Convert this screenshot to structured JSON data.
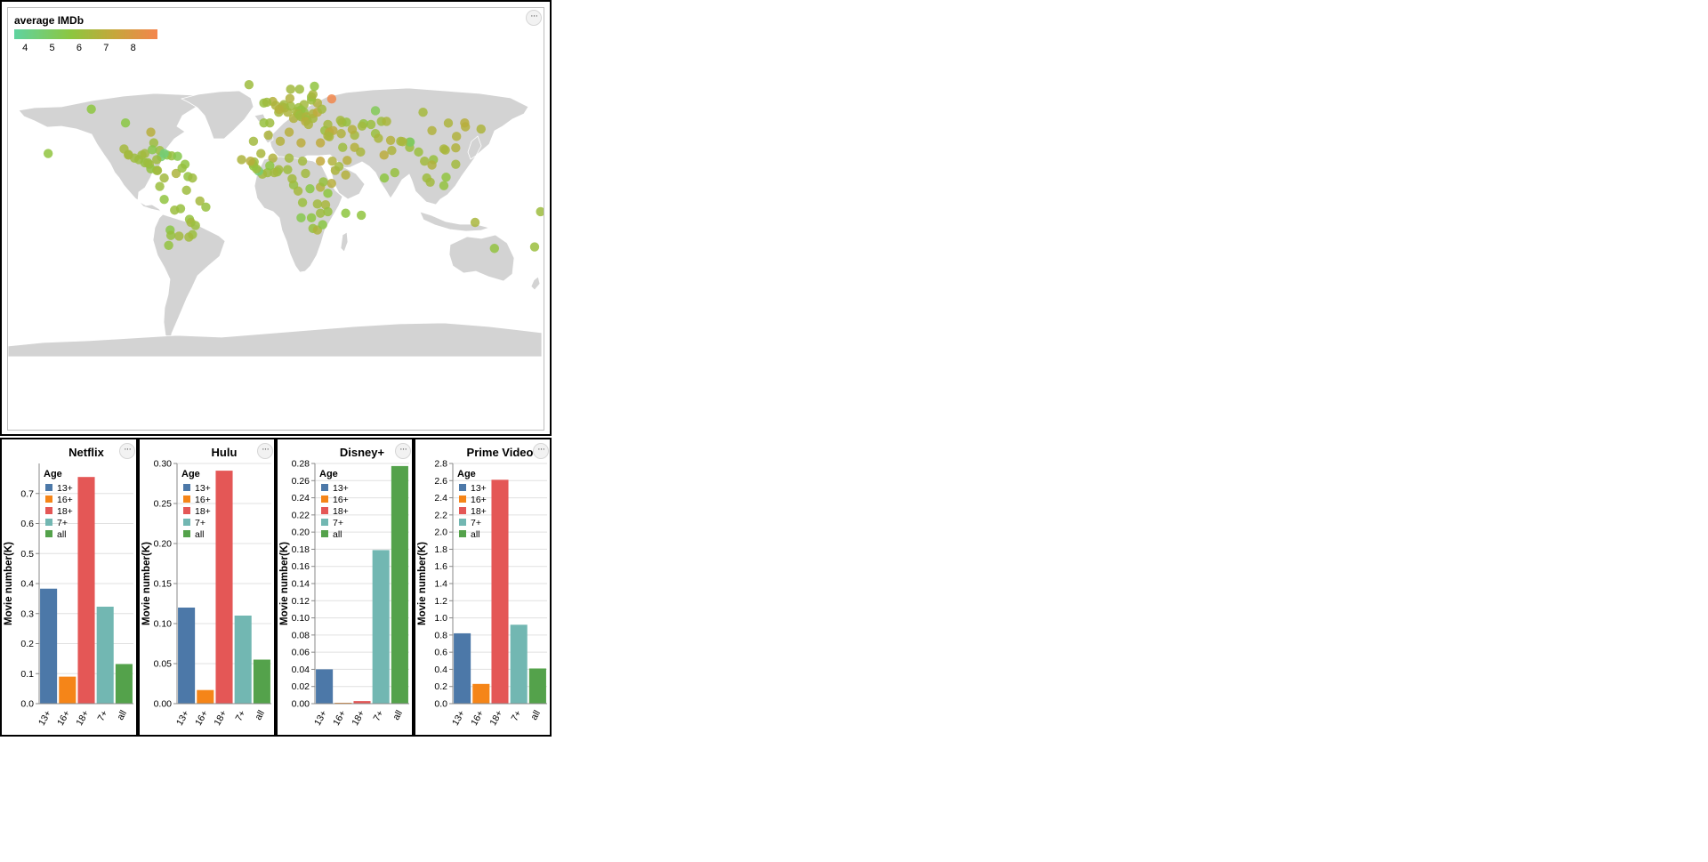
{
  "map": {
    "legend_title": "average IMDb",
    "legend_ticks": [
      "4",
      "5",
      "6",
      "7",
      "8"
    ],
    "scale_min": 3.6,
    "scale_max": 8.9,
    "colors": [
      "#5fd3a0",
      "#8dc63f",
      "#c6a63b",
      "#f4854d"
    ],
    "land_color": "#d3d3d3",
    "menu_label": "···",
    "points": [
      [
        -153,
        20,
        5.8
      ],
      [
        -124,
        49,
        5.7
      ],
      [
        -101,
        40,
        5.6
      ],
      [
        -102,
        23,
        6.4
      ],
      [
        -92,
        16,
        6.1
      ],
      [
        -88,
        14,
        6.0
      ],
      [
        -85,
        13,
        6.3
      ],
      [
        -84,
        10,
        5.9
      ],
      [
        -80,
        9,
        5.8
      ],
      [
        -90,
        19,
        6.2
      ],
      [
        -99,
        19,
        6.5
      ],
      [
        -95,
        17,
        6.2
      ],
      [
        -77,
        18,
        4.7
      ],
      [
        -73,
        19,
        5.5
      ],
      [
        -70,
        18.5,
        6.0
      ],
      [
        -66,
        18.2,
        5.4
      ],
      [
        -78,
        22,
        6.1
      ],
      [
        -84,
        34,
        6.9
      ],
      [
        -75,
        4,
        6.3
      ],
      [
        -67,
        7,
        6.6
      ],
      [
        -59,
        5,
        5.9
      ],
      [
        -56,
        4,
        6.2
      ],
      [
        -78,
        -1.5,
        6.1
      ],
      [
        -75,
        -10,
        5.8
      ],
      [
        -64,
        -16,
        6.0
      ],
      [
        -51,
        -11,
        6.4
      ],
      [
        -47,
        -15,
        6.0
      ],
      [
        -58,
        -23,
        5.9
      ],
      [
        -65,
        -34,
        6.3
      ],
      [
        -71,
        -30,
        5.6
      ],
      [
        -56,
        -33,
        6.1
      ],
      [
        -72,
        -40,
        5.9
      ],
      [
        -82,
        27,
        6.2
      ],
      [
        -88,
        20,
        6.3
      ],
      [
        -83,
        22.5,
        5.5
      ],
      [
        -61,
        13,
        5.8
      ],
      [
        -63,
        10.5,
        6.0
      ],
      [
        -80,
        16,
        6.2
      ],
      [
        -18,
        65,
        6.2
      ],
      [
        -8,
        53,
        6.0
      ],
      [
        -2,
        54,
        6.8
      ],
      [
        2,
        47,
        6.4
      ],
      [
        -4,
        40,
        6.2
      ],
      [
        -8,
        40,
        6.0
      ],
      [
        4.5,
        50.5,
        6.7
      ],
      [
        5.5,
        52,
        6.3
      ],
      [
        6,
        49.8,
        6.5
      ],
      [
        8,
        47,
        6.6
      ],
      [
        10,
        51,
        6.2
      ],
      [
        12,
        43,
        6.7
      ],
      [
        14,
        47.5,
        6.4
      ],
      [
        15.5,
        50,
        6.1
      ],
      [
        19,
        52,
        6.3
      ],
      [
        17,
        48.5,
        5.9
      ],
      [
        19,
        47,
        6.0
      ],
      [
        15,
        46,
        6.5
      ],
      [
        16,
        45,
        6.1
      ],
      [
        17,
        44,
        6.3
      ],
      [
        20.5,
        44,
        6.6
      ],
      [
        21,
        42,
        6.0
      ],
      [
        20,
        41,
        6.9
      ],
      [
        22,
        39,
        6.6
      ],
      [
        25,
        43,
        6.4
      ],
      [
        25,
        46,
        6.6
      ],
      [
        28,
        47,
        7.1
      ],
      [
        31,
        49,
        6.3
      ],
      [
        28,
        53,
        6.7
      ],
      [
        24,
        55,
        6.2
      ],
      [
        24,
        57,
        6.0
      ],
      [
        25,
        58.6,
        6.5
      ],
      [
        26,
        64,
        5.8
      ],
      [
        10,
        62,
        6.3
      ],
      [
        16,
        62,
        6.2
      ],
      [
        9.5,
        56,
        6.7
      ],
      [
        35,
        39,
        6.4
      ],
      [
        33,
        35,
        6.1
      ],
      [
        36,
        34,
        7.0
      ],
      [
        38.5,
        35,
        7.0
      ],
      [
        44,
        33,
        6.7
      ],
      [
        35,
        31.5,
        6.6
      ],
      [
        36,
        31,
        6.5
      ],
      [
        45,
        24,
        6.2
      ],
      [
        53,
        24,
        6.8
      ],
      [
        57,
        21,
        6.5
      ],
      [
        48,
        15.5,
        6.9
      ],
      [
        53,
        32,
        6.4
      ],
      [
        67,
        33,
        6.1
      ],
      [
        69,
        30,
        6.5
      ],
      [
        78,
        22,
        6.6
      ],
      [
        80,
        7.5,
        6.0
      ],
      [
        90,
        24,
        6.1
      ],
      [
        84,
        28,
        6.4
      ],
      [
        90,
        27.5,
        6.3
      ],
      [
        71,
        41,
        6.2
      ],
      [
        64,
        39,
        6.1
      ],
      [
        59,
        39.5,
        5.9
      ],
      [
        74.5,
        41,
        6.5
      ],
      [
        67,
        48,
        5.2
      ],
      [
        99,
        47,
        6.4
      ],
      [
        105,
        35,
        6.7
      ],
      [
        127.5,
        37.5,
        6.8
      ],
      [
        127,
        40,
        6.9
      ],
      [
        138,
        36,
        6.6
      ],
      [
        121,
        23.7,
        6.7
      ],
      [
        114,
        22.3,
        6.5
      ],
      [
        106,
        16,
        6.0
      ],
      [
        100,
        15,
        6.3
      ],
      [
        105,
        12.5,
        6.7
      ],
      [
        96,
        21,
        6.1
      ],
      [
        101.5,
        4,
        6.2
      ],
      [
        103.8,
        1.3,
        6.3
      ],
      [
        114.5,
        4.5,
        5.8
      ],
      [
        121,
        13,
        6.3
      ],
      [
        113,
        -1,
        5.9
      ],
      [
        134,
        -25,
        6.5
      ],
      [
        147,
        -42,
        5.9
      ],
      [
        174,
        -41,
        6.1
      ],
      [
        178,
        -18,
        6.2
      ],
      [
        -5,
        32,
        6.6
      ],
      [
        3,
        28,
        6.8
      ],
      [
        9,
        34,
        6.9
      ],
      [
        17,
        27,
        7.0
      ],
      [
        30,
        27,
        7.1
      ],
      [
        30,
        15,
        7.2
      ],
      [
        38,
        15,
        6.7
      ],
      [
        40,
        9,
        6.6
      ],
      [
        42.5,
        11.5,
        6.3
      ],
      [
        47,
        6,
        6.8
      ],
      [
        37.5,
        0.5,
        6.9
      ],
      [
        30,
        -2,
        6.8
      ],
      [
        32,
        1.5,
        6.0
      ],
      [
        35,
        -6,
        5.7
      ],
      [
        33.5,
        -13.5,
        6.5
      ],
      [
        35,
        -18,
        6.0
      ],
      [
        28,
        -13,
        6.3
      ],
      [
        30,
        -19,
        6.2
      ],
      [
        24,
        -22,
        5.7
      ],
      [
        17,
        -22,
        5.4
      ],
      [
        25,
        -29,
        6.0
      ],
      [
        28,
        -30,
        6.6
      ],
      [
        31.5,
        -26.5,
        5.6
      ],
      [
        18,
        -12,
        6.1
      ],
      [
        15,
        -4.5,
        6.4
      ],
      [
        23,
        -3,
        5.6
      ],
      [
        12,
        -0.5,
        6.0
      ],
      [
        11,
        3.5,
        6.3
      ],
      [
        20,
        7,
        6.3
      ],
      [
        18,
        15,
        6.3
      ],
      [
        9,
        17,
        6.3
      ],
      [
        8,
        9.5,
        6.2
      ],
      [
        2,
        9.5,
        6.4
      ],
      [
        1,
        8,
        6.1
      ],
      [
        -1,
        7.5,
        6.4
      ],
      [
        -5.5,
        7.5,
        6.2
      ],
      [
        -9,
        6.5,
        6.3
      ],
      [
        -11.5,
        8.5,
        4.6
      ],
      [
        -13,
        10,
        6.2
      ],
      [
        -15,
        11.8,
        5.8
      ],
      [
        -15.5,
        13.5,
        6.0
      ],
      [
        -14.5,
        14.5,
        6.2
      ],
      [
        -2,
        17,
        6.7
      ],
      [
        -4,
        12,
        5.7
      ],
      [
        -10,
        20,
        6.5
      ],
      [
        -17,
        15,
        6.9
      ],
      [
        57.5,
        -20.3,
        5.8
      ],
      [
        47,
        -19,
        5.7
      ],
      [
        -23,
        16,
        6.6
      ],
      [
        -15,
        28,
        6.3
      ],
      [
        -6,
        53.5,
        6.2
      ],
      [
        -0.1,
        51.5,
        6.6
      ],
      [
        2.3,
        48.9,
        6.8
      ],
      [
        37.6,
        55.7,
        8.8
      ],
      [
        44.5,
        40.2,
        6.4
      ],
      [
        47.5,
        40.5,
        6.0
      ],
      [
        43.5,
        41.7,
        6.3
      ],
      [
        51.4,
        35.7,
        6.8
      ],
      [
        58,
        38,
        6.3
      ],
      [
        113,
        23,
        6.5
      ],
      [
        116,
        39.9,
        6.6
      ],
      [
        121.5,
        31.2,
        6.7
      ],
      [
        90.4,
        27.5,
        4.9
      ],
      [
        85.3,
        27.7,
        6.5
      ],
      [
        72.8,
        19,
        7.0
      ],
      [
        77.2,
        28.6,
        6.8
      ],
      [
        73,
        4,
        5.7
      ],
      [
        -99.1,
        19.4,
        6.3
      ],
      [
        -86,
        14,
        6.1
      ],
      [
        -79.5,
        8.9,
        6.3
      ],
      [
        -75,
        20,
        4.5
      ],
      [
        -60,
        -4,
        6.2
      ],
      [
        -68,
        -17,
        6.1
      ],
      [
        -70.5,
        -33.5,
        6.0
      ],
      [
        -58.4,
        -34.6,
        6.3
      ],
      [
        -57,
        -25,
        6.4
      ],
      [
        -54,
        -27,
        6.1
      ]
    ]
  },
  "charts": [
    {
      "title": "Netflix",
      "ylabel": "Movie number(K)",
      "legend_title": "Age",
      "categories": [
        "13+",
        "16+",
        "18+",
        "7+",
        "all"
      ],
      "values": [
        0.383,
        0.09,
        0.755,
        0.323,
        0.132
      ],
      "ylim": [
        0,
        0.8
      ],
      "ticks": [
        "0.0",
        "0.1",
        "0.2",
        "0.3",
        "0.4",
        "0.5",
        "0.6",
        "0.7"
      ],
      "tick_values": [
        0,
        0.1,
        0.2,
        0.3,
        0.4,
        0.5,
        0.6,
        0.7
      ]
    },
    {
      "title": "Hulu",
      "ylabel": "Movie number(K)",
      "legend_title": "Age",
      "categories": [
        "13+",
        "16+",
        "18+",
        "7+",
        "all"
      ],
      "values": [
        0.12,
        0.017,
        0.291,
        0.11,
        0.055
      ],
      "ylim": [
        0,
        0.3
      ],
      "ticks": [
        "0.00",
        "0.05",
        "0.10",
        "0.15",
        "0.20",
        "0.25",
        "0.30"
      ],
      "tick_values": [
        0,
        0.05,
        0.1,
        0.15,
        0.2,
        0.25,
        0.3
      ]
    },
    {
      "title": "Disney+",
      "ylabel": "Movie number(K)",
      "legend_title": "Age",
      "categories": [
        "13+",
        "16+",
        "18+",
        "7+",
        "all"
      ],
      "values": [
        0.04,
        0.001,
        0.003,
        0.179,
        0.277
      ],
      "ylim": [
        0,
        0.28
      ],
      "ticks": [
        "0.00",
        "0.02",
        "0.04",
        "0.06",
        "0.08",
        "0.10",
        "0.12",
        "0.14",
        "0.16",
        "0.18",
        "0.20",
        "0.22",
        "0.24",
        "0.26",
        "0.28"
      ],
      "tick_values": [
        0,
        0.02,
        0.04,
        0.06,
        0.08,
        0.1,
        0.12,
        0.14,
        0.16,
        0.18,
        0.2,
        0.22,
        0.24,
        0.26,
        0.28
      ]
    },
    {
      "title": "Prime Video",
      "ylabel": "Movie number(K)",
      "legend_title": "Age",
      "categories": [
        "13+",
        "16+",
        "18+",
        "7+",
        "all"
      ],
      "values": [
        0.82,
        0.23,
        2.61,
        0.92,
        0.41
      ],
      "ylim": [
        0,
        2.8
      ],
      "ticks": [
        "0.0",
        "0.2",
        "0.4",
        "0.6",
        "0.8",
        "1.0",
        "1.2",
        "1.4",
        "1.6",
        "1.8",
        "2.0",
        "2.2",
        "2.4",
        "2.6",
        "2.8"
      ],
      "tick_values": [
        0,
        0.2,
        0.4,
        0.6,
        0.8,
        1.0,
        1.2,
        1.4,
        1.6,
        1.8,
        2.0,
        2.2,
        2.4,
        2.6,
        2.8
      ]
    }
  ],
  "chart_data": [
    {
      "type": "bar",
      "title": "Netflix",
      "ylabel": "Movie number(K)",
      "legend": "Age",
      "categories": [
        "13+",
        "16+",
        "18+",
        "7+",
        "all"
      ],
      "values": [
        0.383,
        0.09,
        0.755,
        0.323,
        0.132
      ],
      "ylim": [
        0,
        0.8
      ]
    },
    {
      "type": "bar",
      "title": "Hulu",
      "ylabel": "Movie number(K)",
      "legend": "Age",
      "categories": [
        "13+",
        "16+",
        "18+",
        "7+",
        "all"
      ],
      "values": [
        0.12,
        0.017,
        0.291,
        0.11,
        0.055
      ],
      "ylim": [
        0,
        0.3
      ]
    },
    {
      "type": "bar",
      "title": "Disney+",
      "ylabel": "Movie number(K)",
      "legend": "Age",
      "categories": [
        "13+",
        "16+",
        "18+",
        "7+",
        "all"
      ],
      "values": [
        0.04,
        0.001,
        0.003,
        0.179,
        0.277
      ],
      "ylim": [
        0,
        0.28
      ]
    },
    {
      "type": "bar",
      "title": "Prime Video",
      "ylabel": "Movie number(K)",
      "legend": "Age",
      "categories": [
        "13+",
        "16+",
        "18+",
        "7+",
        "all"
      ],
      "values": [
        0.82,
        0.23,
        2.61,
        0.92,
        0.41
      ],
      "ylim": [
        0,
        2.8
      ]
    },
    {
      "type": "scatter",
      "title": "",
      "legend": "average IMDb",
      "color_range": [
        4,
        8
      ],
      "note_units": "longitude, latitude, average IMDb"
    }
  ],
  "age_colors": [
    "#4c78a8",
    "#f58518",
    "#e45756",
    "#72b7b2",
    "#54a24b"
  ]
}
